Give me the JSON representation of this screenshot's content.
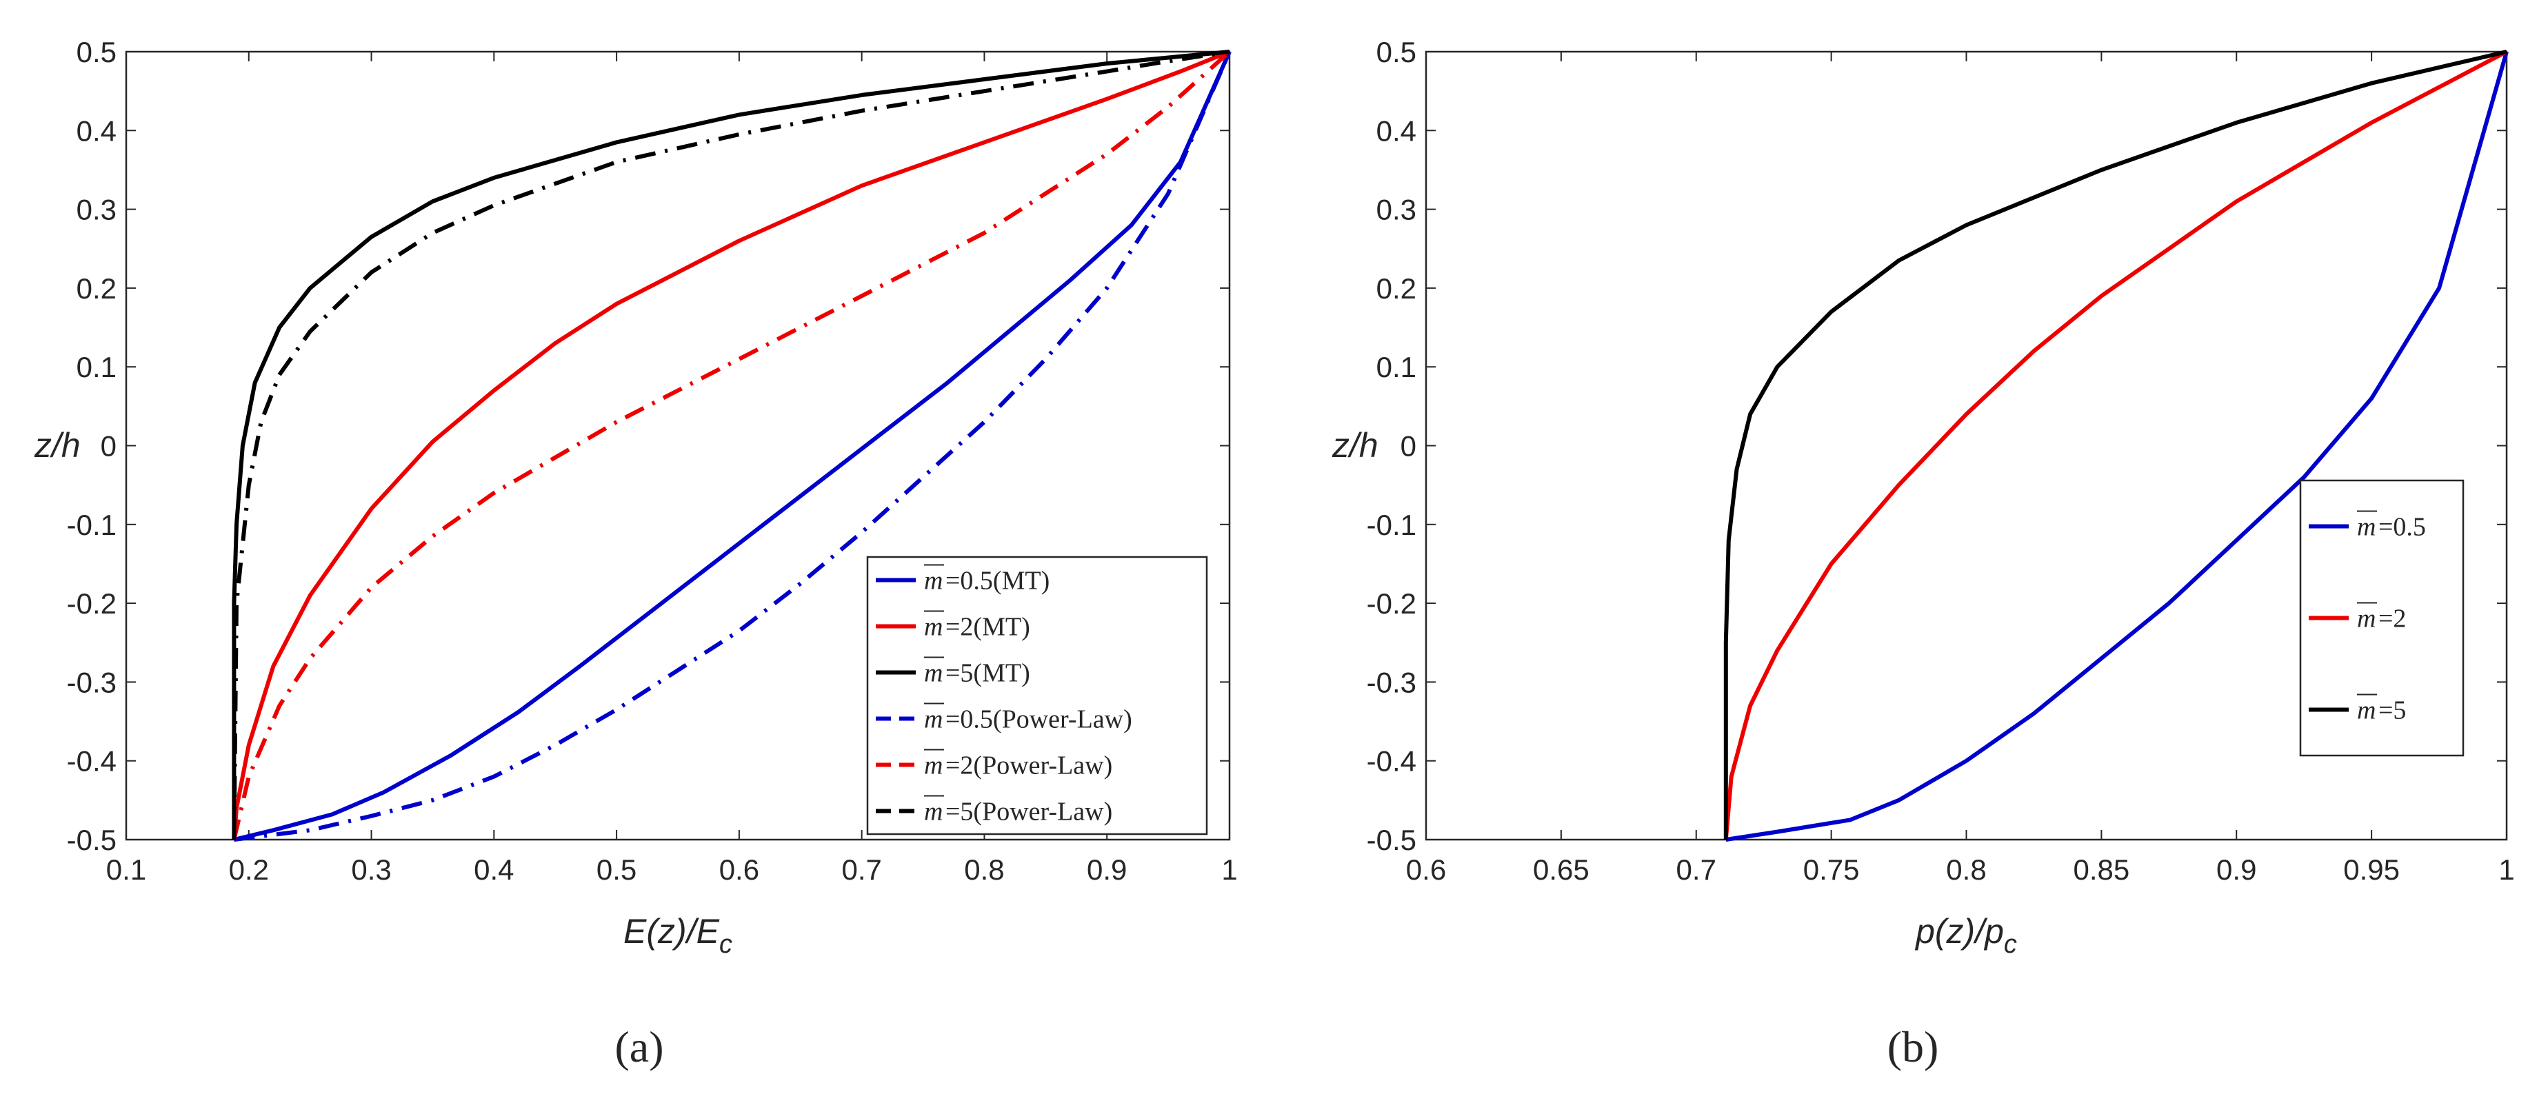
{
  "chart_data": [
    {
      "type": "line",
      "panel_caption": "(a)",
      "xlabel": "E(z)/E",
      "xlabel_sub": "c",
      "ylabel": "z/h",
      "xlim": [
        0.1,
        1
      ],
      "ylim": [
        -0.5,
        0.5
      ],
      "xticks": [
        "0.1",
        "0.2",
        "0.3",
        "0.4",
        "0.5",
        "0.6",
        "0.7",
        "0.8",
        "0.9",
        "1"
      ],
      "yticks": [
        "-0.5",
        "-0.4",
        "-0.3",
        "-0.2",
        "-0.1",
        "0",
        "0.1",
        "0.2",
        "0.3",
        "0.4",
        "0.5"
      ],
      "grid": false,
      "legend_position": "bottom-right",
      "series": [
        {
          "name": "m=0.5(MT)",
          "legend_symbol": "m",
          "legend_value": "=0.5(MT)",
          "color": "#0000cc",
          "style": "solid",
          "x": [
            0.188,
            0.22,
            0.268,
            0.31,
            0.365,
            0.42,
            0.47,
            0.52,
            0.57,
            0.62,
            0.67,
            0.72,
            0.77,
            0.82,
            0.87,
            0.92,
            0.96,
            1.0
          ],
          "y": [
            -0.5,
            -0.488,
            -0.468,
            -0.44,
            -0.393,
            -0.338,
            -0.28,
            -0.22,
            -0.16,
            -0.1,
            -0.04,
            0.02,
            0.08,
            0.145,
            0.21,
            0.28,
            0.36,
            0.5
          ]
        },
        {
          "name": "m=2(MT)",
          "legend_symbol": "m",
          "legend_value": "=2(MT)",
          "color": "#ee0000",
          "style": "solid",
          "x": [
            0.188,
            0.19,
            0.2,
            0.22,
            0.25,
            0.3,
            0.35,
            0.4,
            0.45,
            0.5,
            0.6,
            0.7,
            0.8,
            0.9,
            0.96,
            1.0
          ],
          "y": [
            -0.5,
            -0.46,
            -0.38,
            -0.28,
            -0.19,
            -0.08,
            0.005,
            0.07,
            0.13,
            0.18,
            0.26,
            0.33,
            0.385,
            0.44,
            0.475,
            0.5
          ]
        },
        {
          "name": "m=5(MT)",
          "legend_symbol": "m",
          "legend_value": "=5(MT)",
          "color": "#000000",
          "style": "solid",
          "x": [
            0.188,
            0.188,
            0.19,
            0.195,
            0.205,
            0.225,
            0.25,
            0.3,
            0.35,
            0.4,
            0.5,
            0.6,
            0.7,
            0.8,
            0.9,
            1.0
          ],
          "y": [
            -0.5,
            -0.2,
            -0.1,
            0.0,
            0.08,
            0.15,
            0.2,
            0.265,
            0.31,
            0.34,
            0.385,
            0.42,
            0.445,
            0.465,
            0.485,
            0.5
          ]
        },
        {
          "name": "m=0.5(Power-Law)",
          "legend_symbol": "m",
          "legend_value": "=0.5(Power-Law)",
          "color": "#0000cc",
          "style": "dashdot",
          "x": [
            0.188,
            0.25,
            0.3,
            0.35,
            0.4,
            0.45,
            0.5,
            0.55,
            0.6,
            0.65,
            0.7,
            0.75,
            0.8,
            0.85,
            0.9,
            0.95,
            1.0
          ],
          "y": [
            -0.5,
            -0.488,
            -0.47,
            -0.45,
            -0.42,
            -0.38,
            -0.335,
            -0.285,
            -0.235,
            -0.175,
            -0.11,
            -0.04,
            0.03,
            0.11,
            0.2,
            0.32,
            0.5
          ]
        },
        {
          "name": "m=2(Power-Law)",
          "legend_symbol": "m",
          "legend_value": "=2(Power-Law)",
          "color": "#ee0000",
          "style": "dashdot",
          "x": [
            0.188,
            0.2,
            0.225,
            0.25,
            0.3,
            0.35,
            0.4,
            0.45,
            0.5,
            0.55,
            0.6,
            0.65,
            0.7,
            0.75,
            0.8,
            0.85,
            0.9,
            0.95,
            1.0
          ],
          "y": [
            -0.5,
            -0.42,
            -0.33,
            -0.27,
            -0.18,
            -0.115,
            -0.06,
            -0.015,
            0.03,
            0.07,
            0.11,
            0.15,
            0.19,
            0.23,
            0.27,
            0.32,
            0.37,
            0.43,
            0.5
          ]
        },
        {
          "name": "m=5(Power-Law)",
          "legend_symbol": "m",
          "legend_value": "=5(Power-Law)",
          "color": "#000000",
          "style": "dashdot",
          "x": [
            0.188,
            0.19,
            0.2,
            0.21,
            0.225,
            0.25,
            0.3,
            0.35,
            0.4,
            0.5,
            0.6,
            0.7,
            0.8,
            0.9,
            0.95,
            1.0
          ],
          "y": [
            -0.5,
            -0.2,
            -0.05,
            0.03,
            0.09,
            0.145,
            0.22,
            0.27,
            0.305,
            0.36,
            0.395,
            0.425,
            0.45,
            0.475,
            0.488,
            0.5
          ]
        }
      ]
    },
    {
      "type": "line",
      "panel_caption": "(b)",
      "xlabel": "p(z)/p",
      "xlabel_sub": "c",
      "ylabel": "z/h",
      "xlim": [
        0.6,
        1
      ],
      "ylim": [
        -0.5,
        0.5
      ],
      "xticks": [
        "0.6",
        "0.65",
        "0.7",
        "0.75",
        "0.8",
        "0.85",
        "0.9",
        "0.95",
        "1"
      ],
      "yticks": [
        "-0.5",
        "-0.4",
        "-0.3",
        "-0.2",
        "-0.1",
        "0",
        "0.1",
        "0.2",
        "0.3",
        "0.4",
        "0.5"
      ],
      "grid": false,
      "legend_position": "center-right",
      "series": [
        {
          "name": "m=0.5",
          "legend_symbol": "m",
          "legend_value": "=0.5",
          "color": "#0000cc",
          "style": "solid",
          "x": [
            0.711,
            0.73,
            0.757,
            0.775,
            0.8,
            0.825,
            0.85,
            0.875,
            0.9,
            0.925,
            0.95,
            0.975,
            1.0
          ],
          "y": [
            -0.5,
            -0.49,
            -0.475,
            -0.45,
            -0.4,
            -0.34,
            -0.27,
            -0.2,
            -0.12,
            -0.04,
            0.06,
            0.2,
            0.5
          ]
        },
        {
          "name": "m=2",
          "legend_symbol": "m",
          "legend_value": "=2",
          "color": "#ee0000",
          "style": "solid",
          "x": [
            0.711,
            0.713,
            0.72,
            0.73,
            0.75,
            0.775,
            0.8,
            0.825,
            0.85,
            0.875,
            0.9,
            0.925,
            0.95,
            0.975,
            1.0
          ],
          "y": [
            -0.5,
            -0.42,
            -0.33,
            -0.26,
            -0.15,
            -0.05,
            0.04,
            0.12,
            0.19,
            0.25,
            0.31,
            0.36,
            0.41,
            0.455,
            0.5
          ]
        },
        {
          "name": "m=5",
          "legend_symbol": "m",
          "legend_value": "=5",
          "color": "#000000",
          "style": "solid",
          "x": [
            0.711,
            0.711,
            0.712,
            0.715,
            0.72,
            0.73,
            0.75,
            0.775,
            0.8,
            0.85,
            0.9,
            0.95,
            1.0
          ],
          "y": [
            -0.5,
            -0.25,
            -0.12,
            -0.03,
            0.04,
            0.1,
            0.17,
            0.235,
            0.28,
            0.35,
            0.41,
            0.46,
            0.5
          ]
        }
      ]
    }
  ]
}
